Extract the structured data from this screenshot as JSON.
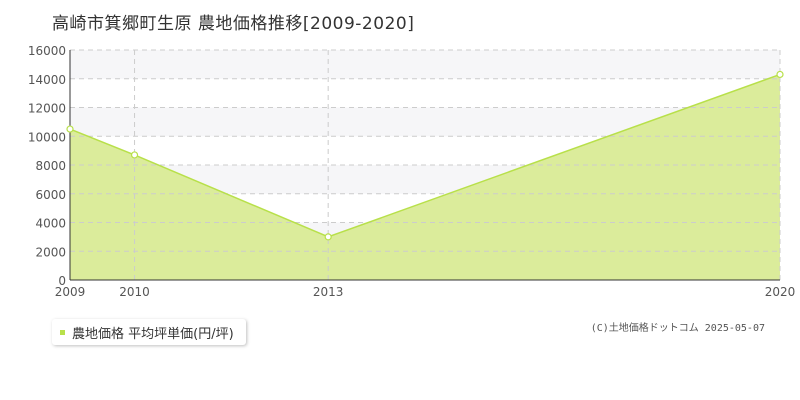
{
  "colors": {
    "area_fill": "#dbec9b",
    "line": "#b8e04a",
    "plot_band": "#f6f6f8",
    "grid": "#cccccc",
    "marker_fill": "#ffffff"
  },
  "chart_data": {
    "type": "area",
    "title": "高崎市箕郷町生原 農地価格推移[2009-2020]",
    "x": [
      2009,
      2010,
      2013,
      2020
    ],
    "series": [
      {
        "name": "農地価格 平均坪単価(円/坪)",
        "values": [
          10500,
          8700,
          3000,
          14300
        ]
      }
    ],
    "y_ticks": [
      0,
      2000,
      4000,
      6000,
      8000,
      10000,
      12000,
      14000,
      16000
    ],
    "ylim": [
      0,
      16000
    ],
    "xlabel": "",
    "ylabel": "",
    "grid": true,
    "legend_position": "bottom-left"
  },
  "legend": {
    "label": "農地価格 平均坪単価(円/坪)"
  },
  "copyright": "(C)土地価格ドットコム 2025-05-07"
}
